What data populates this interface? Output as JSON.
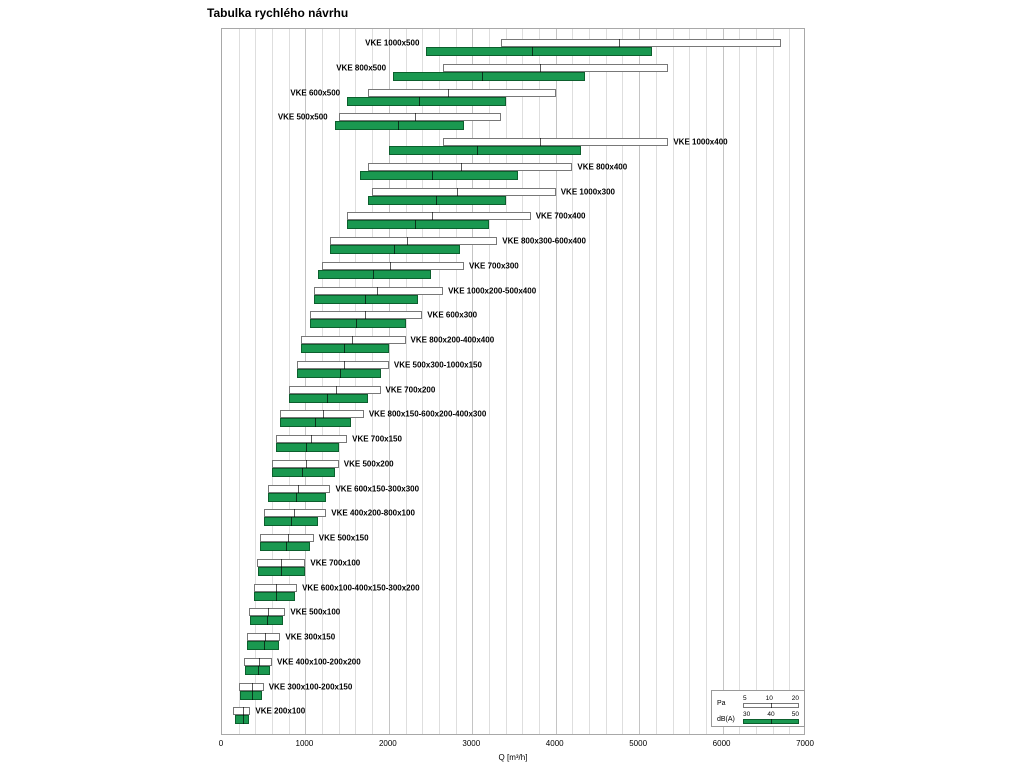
{
  "title": "Tabulka rychlého návrhu",
  "axis": {
    "xlabel": "Q [m³/h]",
    "ticks": [
      0,
      1000,
      2000,
      3000,
      4000,
      5000,
      6000,
      7000
    ],
    "max": 7000,
    "minor_step": 200
  },
  "legend": {
    "pa_label": "Pa",
    "pa_ticks": [
      "5",
      "10",
      "20"
    ],
    "db_label": "dB(A)",
    "db_ticks": [
      "30",
      "40",
      "50"
    ]
  },
  "colors": {
    "green": "#1a9850",
    "green_border": "#0c5f2d",
    "pa_fill": "#ffffff",
    "pa_border": "#787878",
    "grid": "#dedede"
  },
  "chart_data": {
    "type": "bar",
    "title": "Tabulka rychlého návrhu",
    "xlabel": "Q [m³/h]",
    "xlim": [
      0,
      7000
    ],
    "grid_step": 200,
    "legend_position": "bottom-right",
    "series_legend": [
      {
        "name": "Pa",
        "ticks": [
          5,
          10,
          20
        ],
        "style": "white-outline"
      },
      {
        "name": "dB(A)",
        "ticks": [
          30,
          40,
          50
        ],
        "style": "green"
      }
    ],
    "rows": [
      {
        "label": "VKE 1000x500",
        "label_side": "left",
        "pa": [
          3350,
          4750,
          6700
        ],
        "db": [
          2450,
          3700,
          5150
        ]
      },
      {
        "label": "VKE 800x500",
        "label_side": "left",
        "pa": [
          2650,
          3800,
          5350
        ],
        "db": [
          2050,
          3100,
          4350
        ]
      },
      {
        "label": "VKE 600x500",
        "label_side": "left",
        "pa": [
          1750,
          2700,
          4000
        ],
        "db": [
          1500,
          2350,
          3400
        ]
      },
      {
        "label": "VKE 500x500",
        "label_side": "left",
        "pa": [
          1400,
          2300,
          3350
        ],
        "db": [
          1350,
          2100,
          2900
        ]
      },
      {
        "label": "VKE 1000x400",
        "label_side": "right",
        "pa": [
          2650,
          3800,
          5350
        ],
        "db": [
          2000,
          3050,
          4300
        ]
      },
      {
        "label": "VKE 800x400",
        "label_side": "right",
        "pa": [
          1750,
          2850,
          4200
        ],
        "db": [
          1650,
          2500,
          3550
        ]
      },
      {
        "label": "VKE 1000x300",
        "label_side": "right",
        "pa": [
          1800,
          2800,
          4000
        ],
        "db": [
          1750,
          2550,
          3400
        ]
      },
      {
        "label": "VKE 700x400",
        "label_side": "right",
        "pa": [
          1500,
          2500,
          3700
        ],
        "db": [
          1500,
          2300,
          3200
        ]
      },
      {
        "label": "VKE 800x300-600x400",
        "label_side": "right",
        "pa": [
          1300,
          2200,
          3300
        ],
        "db": [
          1300,
          2050,
          2850
        ]
      },
      {
        "label": "VKE 700x300",
        "label_side": "right",
        "pa": [
          1200,
          2000,
          2900
        ],
        "db": [
          1150,
          1800,
          2500
        ]
      },
      {
        "label": "VKE 1000x200-500x400",
        "label_side": "right",
        "pa": [
          1100,
          1850,
          2650
        ],
        "db": [
          1100,
          1700,
          2350
        ]
      },
      {
        "label": "VKE 600x300",
        "label_side": "right",
        "pa": [
          1050,
          1700,
          2400
        ],
        "db": [
          1050,
          1600,
          2200
        ]
      },
      {
        "label": "VKE 800x200-400x400",
        "label_side": "right",
        "pa": [
          950,
          1550,
          2200
        ],
        "db": [
          950,
          1450,
          2000
        ]
      },
      {
        "label": "VKE 500x300-1000x150",
        "label_side": "right",
        "pa": [
          900,
          1450,
          2000
        ],
        "db": [
          900,
          1400,
          1900
        ]
      },
      {
        "label": "VKE 700x200",
        "label_side": "right",
        "pa": [
          800,
          1350,
          1900
        ],
        "db": [
          800,
          1250,
          1750
        ]
      },
      {
        "label": "VKE 800x150-600x200-400x300",
        "label_side": "right",
        "pa": [
          700,
          1200,
          1700
        ],
        "db": [
          700,
          1100,
          1550
        ]
      },
      {
        "label": "VKE 700x150",
        "label_side": "right",
        "pa": [
          650,
          1050,
          1500
        ],
        "db": [
          650,
          1000,
          1400
        ]
      },
      {
        "label": "VKE 500x200",
        "label_side": "right",
        "pa": [
          600,
          1000,
          1400
        ],
        "db": [
          600,
          950,
          1350
        ]
      },
      {
        "label": "VKE 600x150-300x300",
        "label_side": "right",
        "pa": [
          550,
          900,
          1300
        ],
        "db": [
          550,
          880,
          1250
        ]
      },
      {
        "label": "VKE 400x200-800x100",
        "label_side": "right",
        "pa": [
          500,
          850,
          1250
        ],
        "db": [
          500,
          820,
          1150
        ]
      },
      {
        "label": "VKE 500x150",
        "label_side": "right",
        "pa": [
          450,
          780,
          1100
        ],
        "db": [
          450,
          750,
          1050
        ]
      },
      {
        "label": "VKE 700x100",
        "label_side": "right",
        "pa": [
          420,
          700,
          1000
        ],
        "db": [
          430,
          700,
          1000
        ]
      },
      {
        "label": "VKE 600x100-400x150-300x200",
        "label_side": "right",
        "pa": [
          380,
          640,
          900
        ],
        "db": [
          380,
          630,
          880
        ]
      },
      {
        "label": "VKE 500x100",
        "label_side": "right",
        "pa": [
          320,
          540,
          760
        ],
        "db": [
          330,
          530,
          730
        ]
      },
      {
        "label": "VKE 300x150",
        "label_side": "right",
        "pa": [
          300,
          500,
          700
        ],
        "db": [
          300,
          490,
          680
        ]
      },
      {
        "label": "VKE 400x100-200x200",
        "label_side": "right",
        "pa": [
          260,
          430,
          600
        ],
        "db": [
          270,
          420,
          580
        ]
      },
      {
        "label": "VKE 300x100-200x150",
        "label_side": "right",
        "pa": [
          200,
          350,
          500
        ],
        "db": [
          220,
          350,
          480
        ]
      },
      {
        "label": "VKE 200x100",
        "label_side": "right",
        "pa": [
          130,
          240,
          340
        ],
        "db": [
          150,
          240,
          320
        ]
      }
    ]
  }
}
